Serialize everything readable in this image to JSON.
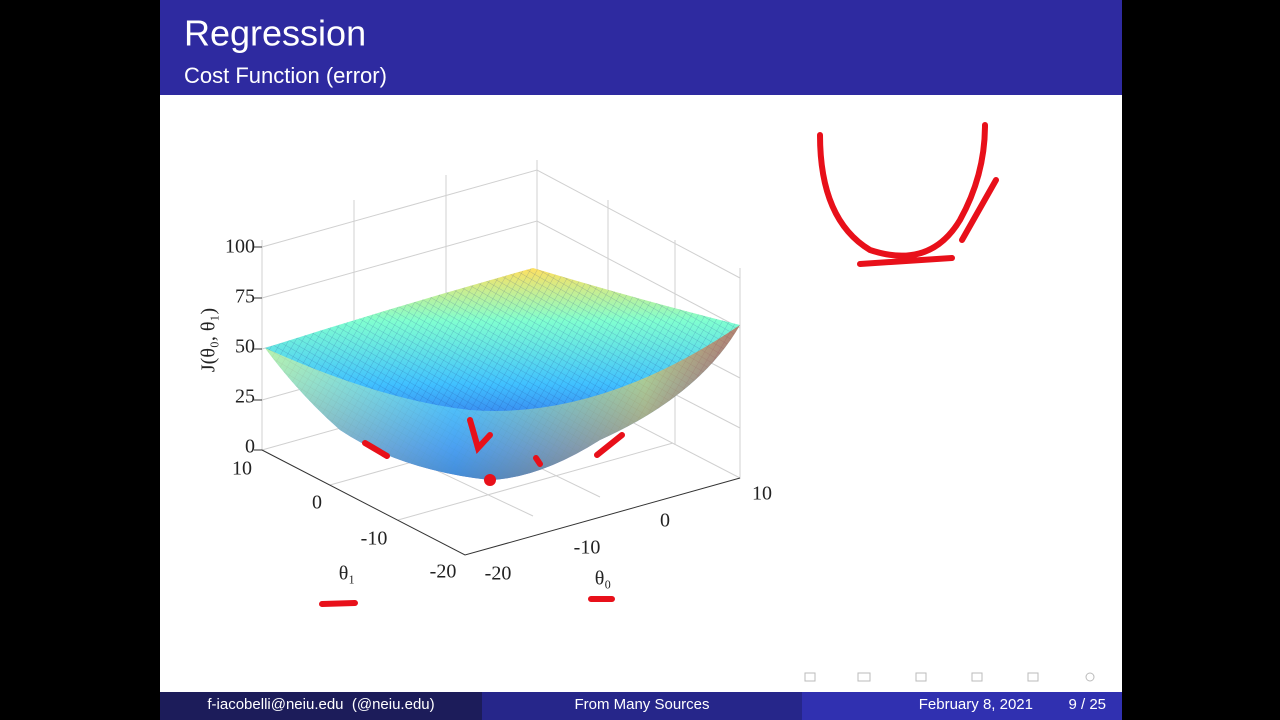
{
  "header": {
    "title": "Regression",
    "subtitle": "Cost Function (error)"
  },
  "figure": {
    "z_axis": {
      "label": "J(θ₀, θ₁)",
      "ticks": [
        100,
        75,
        50,
        25,
        0
      ]
    },
    "theta1_axis": {
      "label": "θ₁",
      "ticks": [
        10,
        0,
        -10,
        -20
      ]
    },
    "theta0_axis": {
      "label": "θ₀",
      "ticks": [
        -20,
        -10,
        0,
        10
      ]
    }
  },
  "footer": {
    "author": "f-iacobelli@neiu.edu  (@neiu.edu)",
    "source": "From Many Sources",
    "date": "February 8, 2021",
    "page": "9 / 25"
  }
}
